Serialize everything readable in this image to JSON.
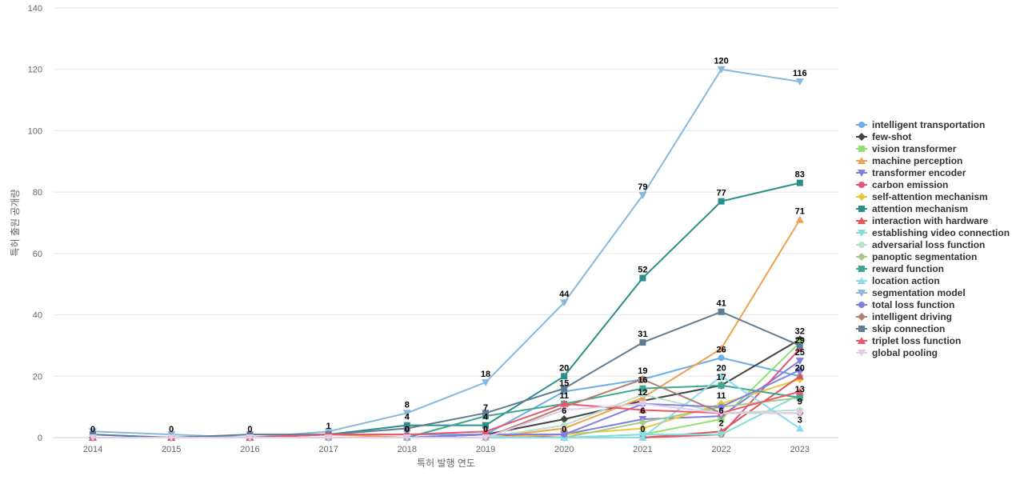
{
  "chart_data": {
    "type": "line",
    "xlabel": "특허 발행 연도",
    "ylabel": "특허 출원 공개량",
    "ylim": [
      0,
      140
    ],
    "yticks": [
      0,
      20,
      40,
      60,
      80,
      100,
      120,
      140
    ],
    "x": [
      "2014",
      "2015",
      "2016",
      "2017",
      "2018",
      "2019",
      "2020",
      "2021",
      "2022",
      "2023"
    ],
    "grid": true,
    "legend_position": "right",
    "series": [
      {
        "name": "intelligent transportation",
        "color": "#6caee8",
        "marker": "circle",
        "values": [
          1,
          0,
          0,
          1,
          1,
          1,
          15,
          19,
          26,
          20
        ]
      },
      {
        "name": "few-shot",
        "color": "#444444",
        "marker": "diamond",
        "values": [
          0,
          0,
          0,
          0,
          0,
          1,
          6,
          12,
          17,
          32
        ]
      },
      {
        "name": "vision transformer",
        "color": "#90e070",
        "marker": "square",
        "values": [
          0,
          0,
          0,
          0,
          0,
          0,
          0,
          1,
          6,
          31
        ]
      },
      {
        "name": "machine perception",
        "color": "#f0a050",
        "marker": "triangle",
        "values": [
          0,
          0,
          0,
          1,
          0,
          0,
          3,
          13,
          29,
          71
        ]
      },
      {
        "name": "transformer encoder",
        "color": "#7f7fe0",
        "marker": "triangle-down",
        "values": [
          0,
          0,
          0,
          0,
          0,
          1,
          1,
          6,
          7,
          25
        ]
      },
      {
        "name": "carbon emission",
        "color": "#e05578",
        "marker": "circle",
        "values": [
          0,
          0,
          0,
          0,
          0,
          1,
          0,
          0,
          1,
          29
        ]
      },
      {
        "name": "self-attention mechanism",
        "color": "#e8c840",
        "marker": "diamond",
        "values": [
          0,
          0,
          0,
          0,
          0,
          0,
          1,
          3,
          11,
          19
        ]
      },
      {
        "name": "attention mechanism",
        "color": "#2a8f8a",
        "marker": "square",
        "values": [
          0,
          0,
          0,
          1,
          4,
          4,
          20,
          52,
          77,
          83
        ]
      },
      {
        "name": "interaction with hardware",
        "color": "#e05555",
        "marker": "triangle",
        "values": [
          0,
          0,
          0,
          0,
          0,
          0,
          0,
          0,
          2,
          20
        ]
      },
      {
        "name": "establishing video connection",
        "color": "#80e0d8",
        "marker": "triangle-down",
        "values": [
          0,
          0,
          0,
          0,
          0,
          0,
          0,
          1,
          1,
          14
        ]
      },
      {
        "name": "adversarial loss function",
        "color": "#b8e0cc",
        "marker": "circle",
        "values": [
          0,
          0,
          0,
          0,
          0,
          0,
          4,
          14,
          8,
          9
        ]
      },
      {
        "name": "panoptic segmentation",
        "color": "#a8c888",
        "marker": "diamond",
        "values": [
          0,
          0,
          0,
          0,
          0,
          0,
          0,
          5,
          10,
          13
        ]
      },
      {
        "name": "reward function",
        "color": "#40a890",
        "marker": "square",
        "values": [
          0,
          0,
          0,
          0,
          0,
          7,
          11,
          16,
          17,
          13
        ]
      },
      {
        "name": "location action",
        "color": "#88dcec",
        "marker": "triangle",
        "values": [
          0,
          0,
          0,
          0,
          0,
          0,
          0,
          0,
          20,
          3
        ]
      },
      {
        "name": "segmentation model",
        "color": "#88b8dc",
        "marker": "triangle-down",
        "values": [
          2,
          1,
          0,
          2,
          8,
          18,
          44,
          79,
          120,
          116
        ]
      },
      {
        "name": "total loss function",
        "color": "#8080e0",
        "marker": "circle",
        "values": [
          0,
          0,
          0,
          0,
          0,
          1,
          1,
          11,
          10,
          22
        ]
      },
      {
        "name": "intelligent driving",
        "color": "#b08070",
        "marker": "diamond",
        "values": [
          0,
          0,
          0,
          0,
          0,
          0,
          10,
          19,
          8,
          8
        ]
      },
      {
        "name": "skip connection",
        "color": "#5e7c94",
        "marker": "square",
        "values": [
          1,
          0,
          1,
          1,
          3,
          8,
          16,
          31,
          41,
          30
        ]
      },
      {
        "name": "triplet loss function",
        "color": "#e85868",
        "marker": "triangle",
        "values": [
          0,
          0,
          0,
          1,
          1,
          2,
          11,
          9,
          8,
          15
        ]
      },
      {
        "name": "global pooling",
        "color": "#e0cce8",
        "marker": "triangle-down",
        "values": [
          0,
          0,
          0,
          0,
          0,
          0,
          9,
          11,
          8,
          8
        ]
      }
    ],
    "data_labels": [
      {
        "x": "2014",
        "value": 0
      },
      {
        "x": "2015",
        "value": 0
      },
      {
        "x": "2016",
        "value": 0
      },
      {
        "x": "2017",
        "value": 1
      },
      {
        "x": "2018",
        "value": 8
      },
      {
        "x": "2018",
        "value": 4
      },
      {
        "x": "2018",
        "value": 0
      },
      {
        "x": "2019",
        "value": 18
      },
      {
        "x": "2019",
        "value": 7
      },
      {
        "x": "2019",
        "value": 4
      },
      {
        "x": "2019",
        "value": 0
      },
      {
        "x": "2020",
        "value": 44
      },
      {
        "x": "2020",
        "value": 20
      },
      {
        "x": "2020",
        "value": 15
      },
      {
        "x": "2020",
        "value": 11
      },
      {
        "x": "2020",
        "value": 6
      },
      {
        "x": "2020",
        "value": 0
      },
      {
        "x": "2021",
        "value": 79
      },
      {
        "x": "2021",
        "value": 52
      },
      {
        "x": "2021",
        "value": 31
      },
      {
        "x": "2021",
        "value": 19
      },
      {
        "x": "2021",
        "value": 16
      },
      {
        "x": "2021",
        "value": 12
      },
      {
        "x": "2021",
        "value": 6
      },
      {
        "x": "2021",
        "value": 0
      },
      {
        "x": "2022",
        "value": 120
      },
      {
        "x": "2022",
        "value": 77
      },
      {
        "x": "2022",
        "value": 41
      },
      {
        "x": "2022",
        "value": 26
      },
      {
        "x": "2022",
        "value": 20
      },
      {
        "x": "2022",
        "value": 17
      },
      {
        "x": "2022",
        "value": 11
      },
      {
        "x": "2022",
        "value": 6
      },
      {
        "x": "2022",
        "value": 2
      },
      {
        "x": "2023",
        "value": 116
      },
      {
        "x": "2023",
        "value": 83
      },
      {
        "x": "2023",
        "value": 71
      },
      {
        "x": "2023",
        "value": 32
      },
      {
        "x": "2023",
        "value": 29
      },
      {
        "x": "2023",
        "value": 25
      },
      {
        "x": "2023",
        "value": 20
      },
      {
        "x": "2023",
        "value": 13
      },
      {
        "x": "2023",
        "value": 9
      },
      {
        "x": "2023",
        "value": 3
      }
    ]
  }
}
